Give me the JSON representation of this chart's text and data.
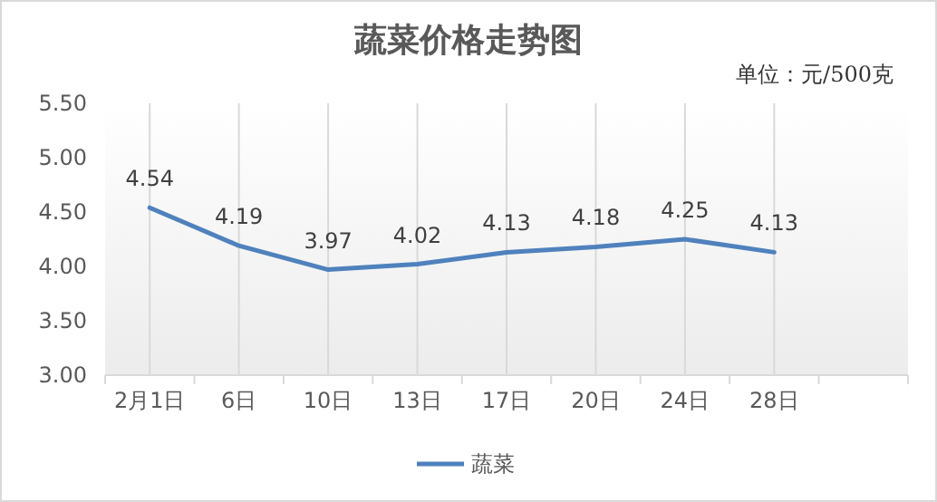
{
  "chart_data": {
    "type": "line",
    "title": "蔬菜价格走势图",
    "annotations": [
      "单位：元/500克"
    ],
    "categories": [
      "2月1日",
      "6日",
      "10日",
      "13日",
      "17日",
      "20日",
      "24日",
      "28日",
      null
    ],
    "series": [
      {
        "name": "蔬菜",
        "color": "#4f81bd",
        "values": [
          4.54,
          4.19,
          3.97,
          4.02,
          4.13,
          4.18,
          4.25,
          4.13,
          null
        ]
      }
    ],
    "ylim": [
      3,
      5.5
    ],
    "yticks": [
      {
        "value": 3,
        "label": "3.00"
      },
      {
        "value": 3.5,
        "label": "3.50"
      },
      {
        "value": 4,
        "label": "4.00"
      },
      {
        "value": 4.5,
        "label": "4.50"
      },
      {
        "value": 5,
        "label": "5.00"
      },
      {
        "value": 5.5,
        "label": "5.50"
      }
    ],
    "grid": "x",
    "data_labels": true,
    "legend": "bottom",
    "marker": "none",
    "line_style": "solid"
  }
}
